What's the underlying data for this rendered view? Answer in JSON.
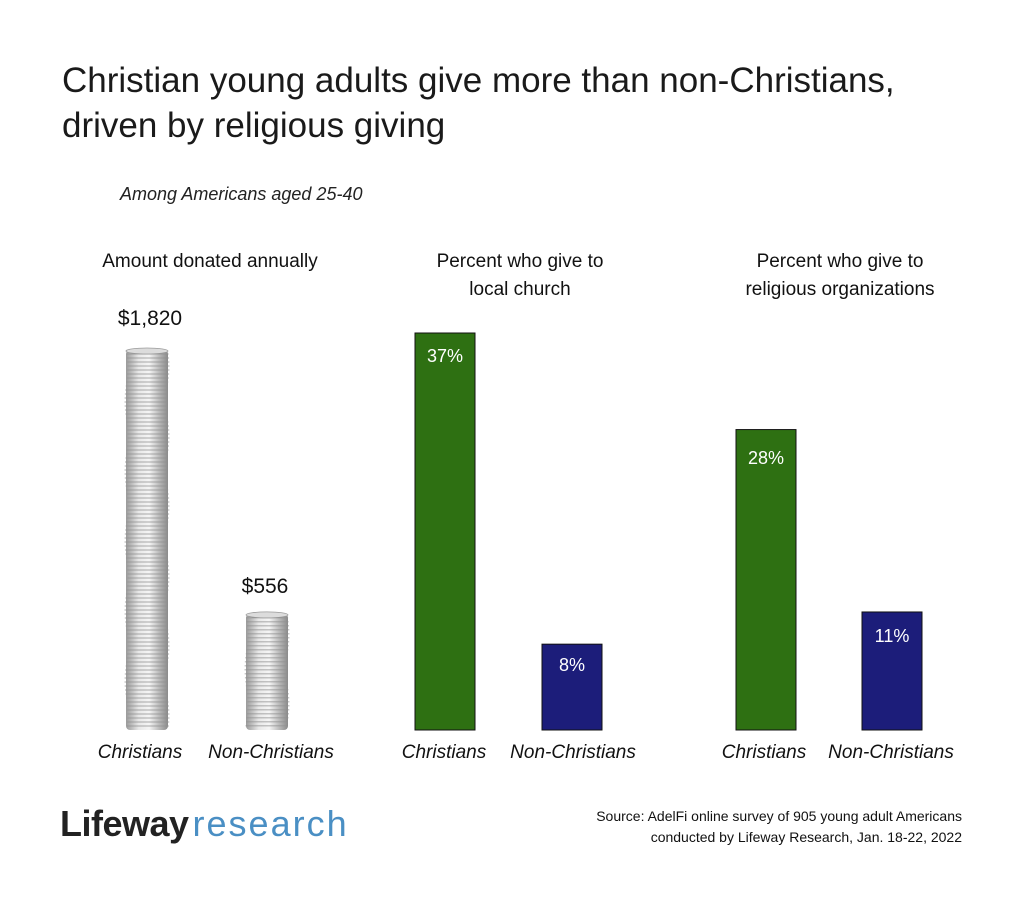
{
  "title": "Christian young adults give more than non-Christians, driven by religious giving",
  "subtitle": "Among Americans aged 25-40",
  "colors": {
    "christians": "#2e7012",
    "non_christians": "#1c1d7a",
    "coin": "#c9c9c9"
  },
  "chart_data": [
    {
      "type": "bar",
      "title": "Amount donated annually",
      "categories": [
        "Christians",
        "Non-Christians"
      ],
      "values": [
        1820,
        556
      ],
      "value_labels": [
        "$1,820",
        "$556"
      ],
      "unit": "USD",
      "style": "coin-stacks"
    },
    {
      "type": "bar",
      "title": "Percent who give to local church",
      "categories": [
        "Christians",
        "Non-Christians"
      ],
      "values": [
        37,
        8
      ],
      "value_labels": [
        "37%",
        "8%"
      ],
      "unit": "%"
    },
    {
      "type": "bar",
      "title": "Percent who give to religious organizations",
      "categories": [
        "Christians",
        "Non-Christians"
      ],
      "values": [
        28,
        11
      ],
      "value_labels": [
        "28%",
        "11%"
      ],
      "unit": "%"
    }
  ],
  "panel_titles": {
    "p1": "Amount donated annually",
    "p2_line1": "Percent who give to",
    "p2_line2": "local church",
    "p3_line1": "Percent who give to",
    "p3_line2": "religious organizations"
  },
  "logo": {
    "brand": "Lifeway",
    "sub": "research"
  },
  "source": {
    "line1": "Source: AdelFi online survey of 905 young adult Americans",
    "line2": "conducted by Lifeway Research, Jan. 18-22, 2022"
  }
}
